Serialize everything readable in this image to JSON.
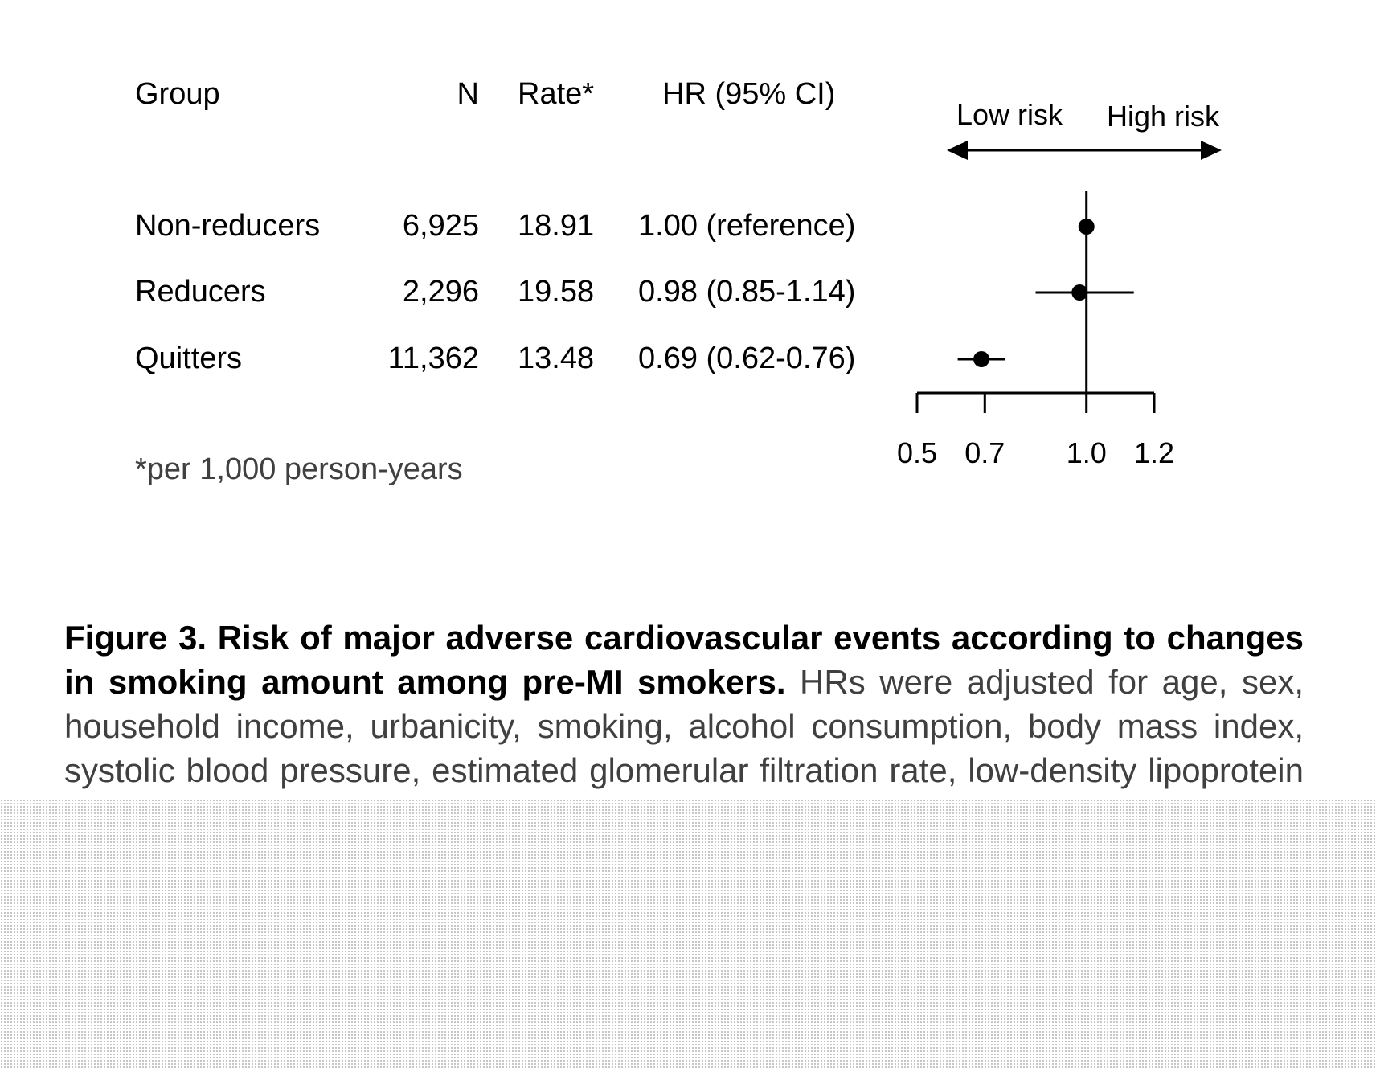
{
  "table": {
    "headers": {
      "group": "Group",
      "n": "N",
      "rate": "Rate*",
      "hr": "HR (95% CI)"
    },
    "rows": [
      {
        "group": "Non-reducers",
        "n": "6,925",
        "rate": "18.91",
        "hr": "1.00 (reference)"
      },
      {
        "group": "Reducers",
        "n": "2,296",
        "rate": "19.58",
        "hr": "0.98 (0.85-1.14)"
      },
      {
        "group": "Quitters",
        "n": "11,362",
        "rate": "13.48",
        "hr": "0.69 (0.62-0.76)"
      }
    ],
    "footnote": "*per 1,000 person-years"
  },
  "chart_data": {
    "type": "forest",
    "direction_labels": {
      "low": "Low risk",
      "high": "High risk"
    },
    "reference_line": 1.0,
    "axis": {
      "xlim": [
        0.5,
        1.2
      ],
      "ticks": [
        0.5,
        0.7,
        1.0,
        1.2
      ],
      "tick_labels": [
        "0.5",
        "0.7",
        "1.0",
        "1.2"
      ]
    },
    "series": [
      {
        "name": "Non-reducers",
        "hr": 1.0,
        "lower": null,
        "upper": null
      },
      {
        "name": "Reducers",
        "hr": 0.98,
        "lower": 0.85,
        "upper": 1.14
      },
      {
        "name": "Quitters",
        "hr": 0.69,
        "lower": 0.62,
        "upper": 0.76
      }
    ]
  },
  "caption": {
    "title": "Figure 3. Risk of major adverse cardiovascular events according to changes in smoking amount among pre-MI smokers.",
    "text": "HRs were adjusted for age, sex, household income, urbanicity, smoking, alcohol consumption, body mass index, systolic blood pressure, estimated glomerular filtration rate, low-density lipoprotein cholesterol, medications, comorbidities, type of"
  },
  "colors": {
    "text": "#000000",
    "caption_text": "#404040",
    "cutoff_dots": "#b8b8b8"
  }
}
